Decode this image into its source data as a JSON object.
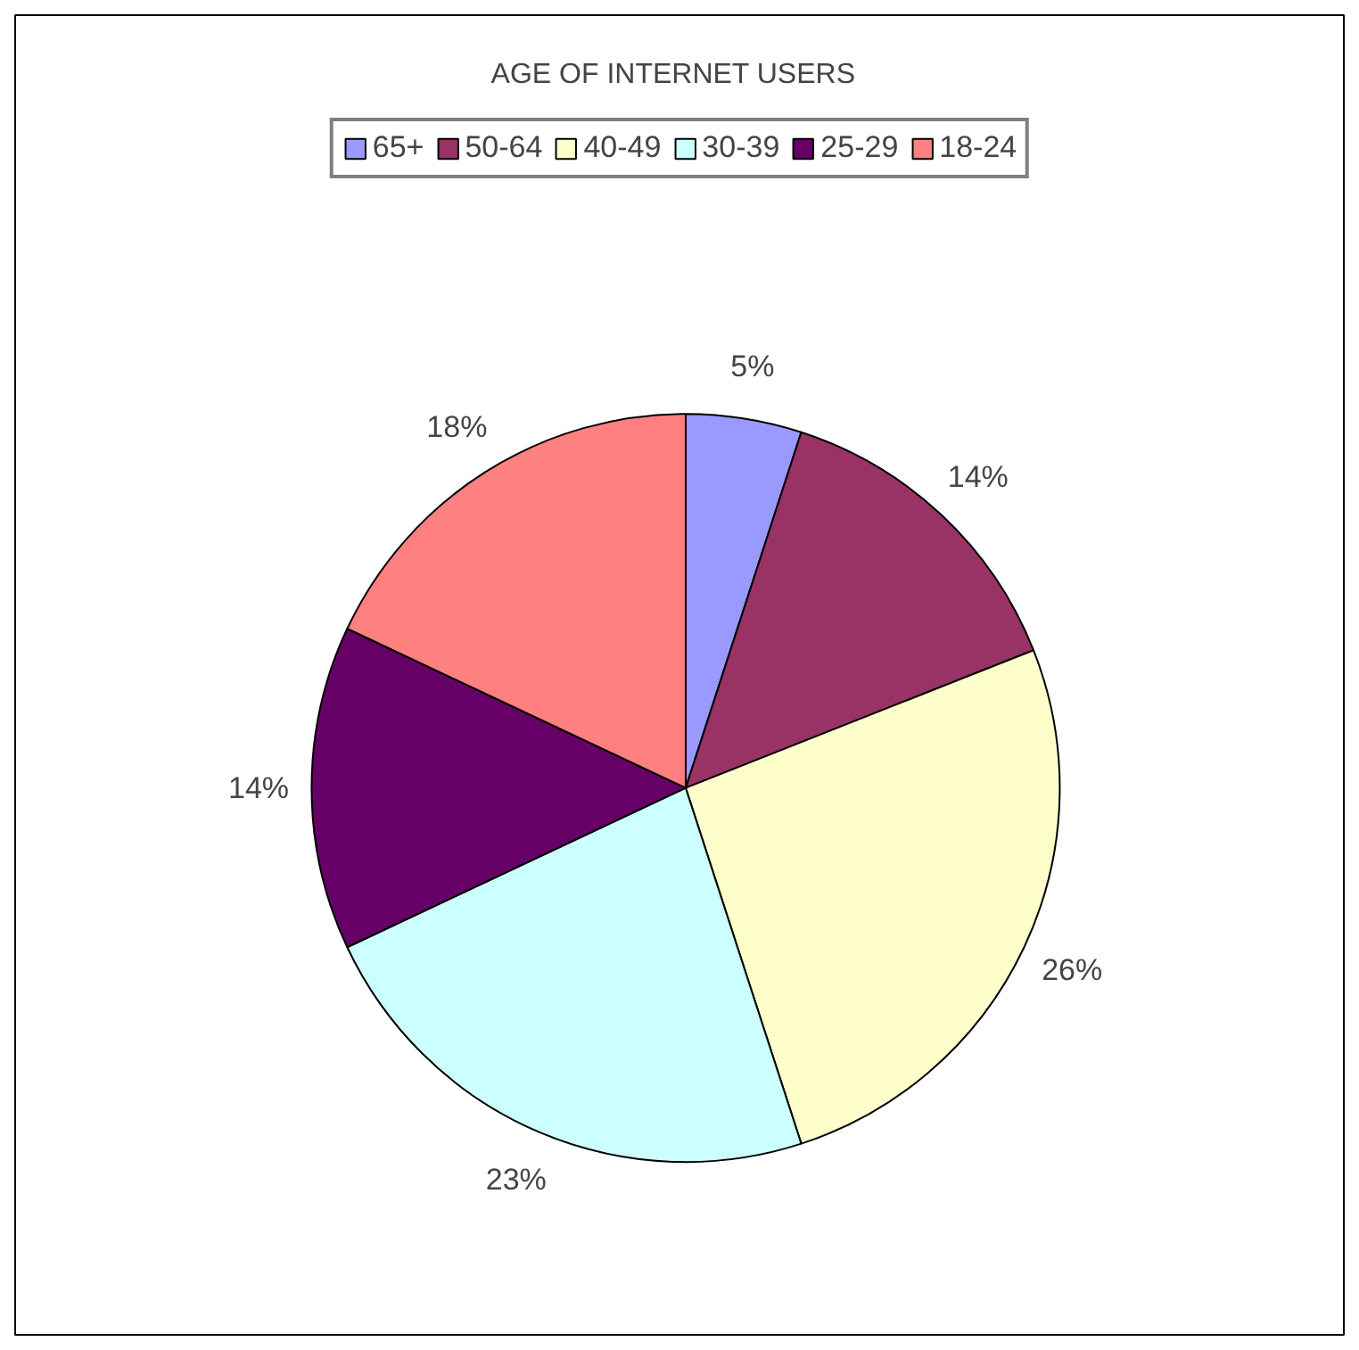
{
  "chart_data": {
    "type": "pie",
    "title": "AGE OF INTERNET USERS",
    "categories": [
      "65+",
      "50-64",
      "40-49",
      "30-39",
      "25-29",
      "18-24"
    ],
    "values": [
      5,
      14,
      26,
      23,
      14,
      18
    ],
    "value_labels": [
      "5%",
      "14%",
      "26%",
      "23%",
      "14%",
      "18%"
    ],
    "colors": [
      "#9999ff",
      "#993366",
      "#ffffcc",
      "#ccffff",
      "#660066",
      "#ff8080"
    ],
    "legend": "top"
  }
}
